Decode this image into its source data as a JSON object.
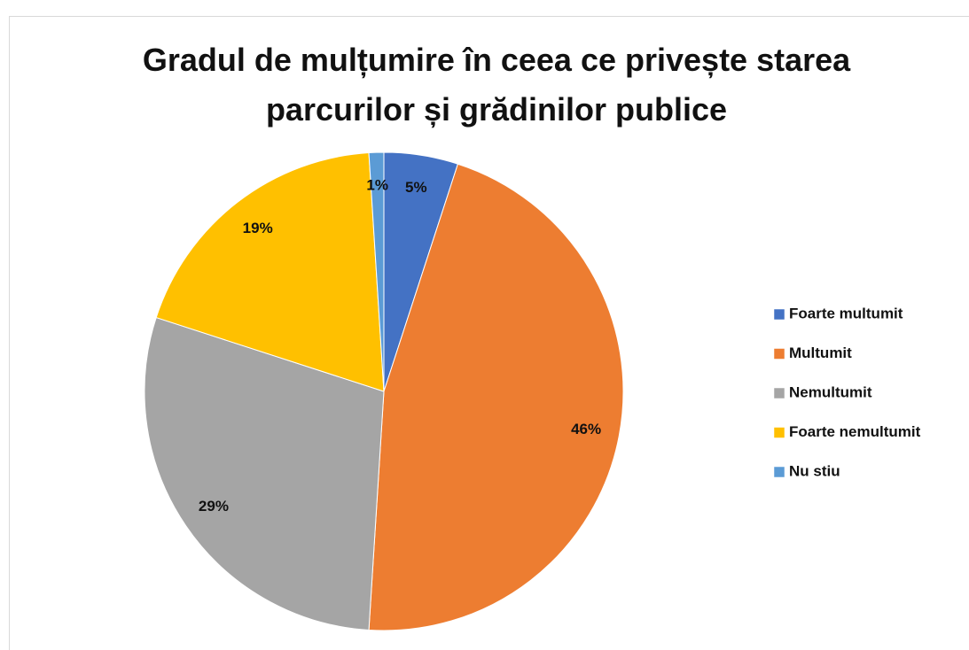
{
  "chart_data": {
    "type": "pie",
    "title": "Gradul de mulțumire în ceea ce privește starea parcurilor și grădinilor publice",
    "categories": [
      "Foarte multumit",
      "Multumit",
      "Nemultumit",
      "Foarte nemultumit",
      "Nu stiu"
    ],
    "values": [
      5,
      46,
      29,
      19,
      1
    ],
    "value_labels": [
      "5%",
      "46%",
      "29%",
      "19%",
      "1%"
    ],
    "colors": [
      "#4472c4",
      "#ed7d31",
      "#a5a5a5",
      "#ffc000",
      "#5b9bd5"
    ],
    "legend": "right"
  }
}
